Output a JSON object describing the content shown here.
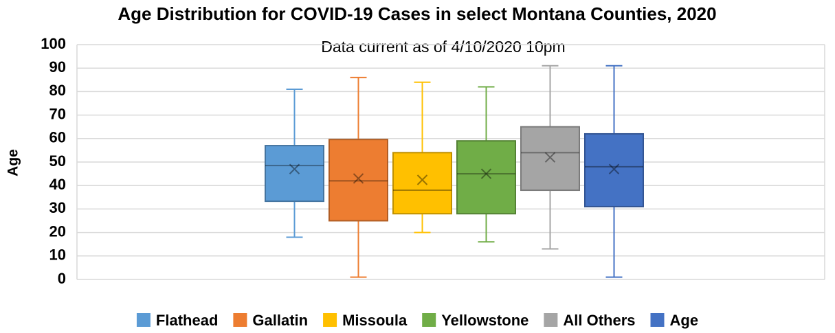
{
  "chart_data": {
    "type": "box",
    "title": "Age Distribution for COVID-19 Cases in select Montana Counties, 2020",
    "subtitle": "Data current as of 4/10/2020 10pm",
    "y_label": "Age",
    "ylim": [
      0,
      100
    ],
    "yticks": [
      0,
      10,
      20,
      30,
      40,
      50,
      60,
      70,
      80,
      90,
      100
    ],
    "grid": true,
    "legend": "bottom",
    "series": [
      {
        "name": "Flathead",
        "color": "#5b9bd5",
        "min": 18,
        "q1": 33.3,
        "median": 48.5,
        "q3": 57,
        "max": 81,
        "mean": 47
      },
      {
        "name": "Gallatin",
        "color": "#ed7d31",
        "min": 1,
        "q1": 25,
        "median": 42,
        "q3": 59.6,
        "max": 86,
        "mean": 43
      },
      {
        "name": "Missoula",
        "color": "#ffc000",
        "min": 20,
        "q1": 28,
        "median": 38,
        "q3": 54,
        "max": 84,
        "mean": 42.4
      },
      {
        "name": "Yellowstone",
        "color": "#70ad47",
        "min": 16,
        "q1": 28,
        "median": 45,
        "q3": 59,
        "max": 82,
        "mean": 45
      },
      {
        "name": "All Others",
        "color": "#a5a5a5",
        "min": 13,
        "q1": 38,
        "median": 54,
        "q3": 65,
        "max": 91,
        "mean": 52
      },
      {
        "name": "Age",
        "color": "#4472c4",
        "min": 1,
        "q1": 31,
        "median": 48,
        "q3": 62,
        "max": 91,
        "mean": 47
      }
    ]
  }
}
